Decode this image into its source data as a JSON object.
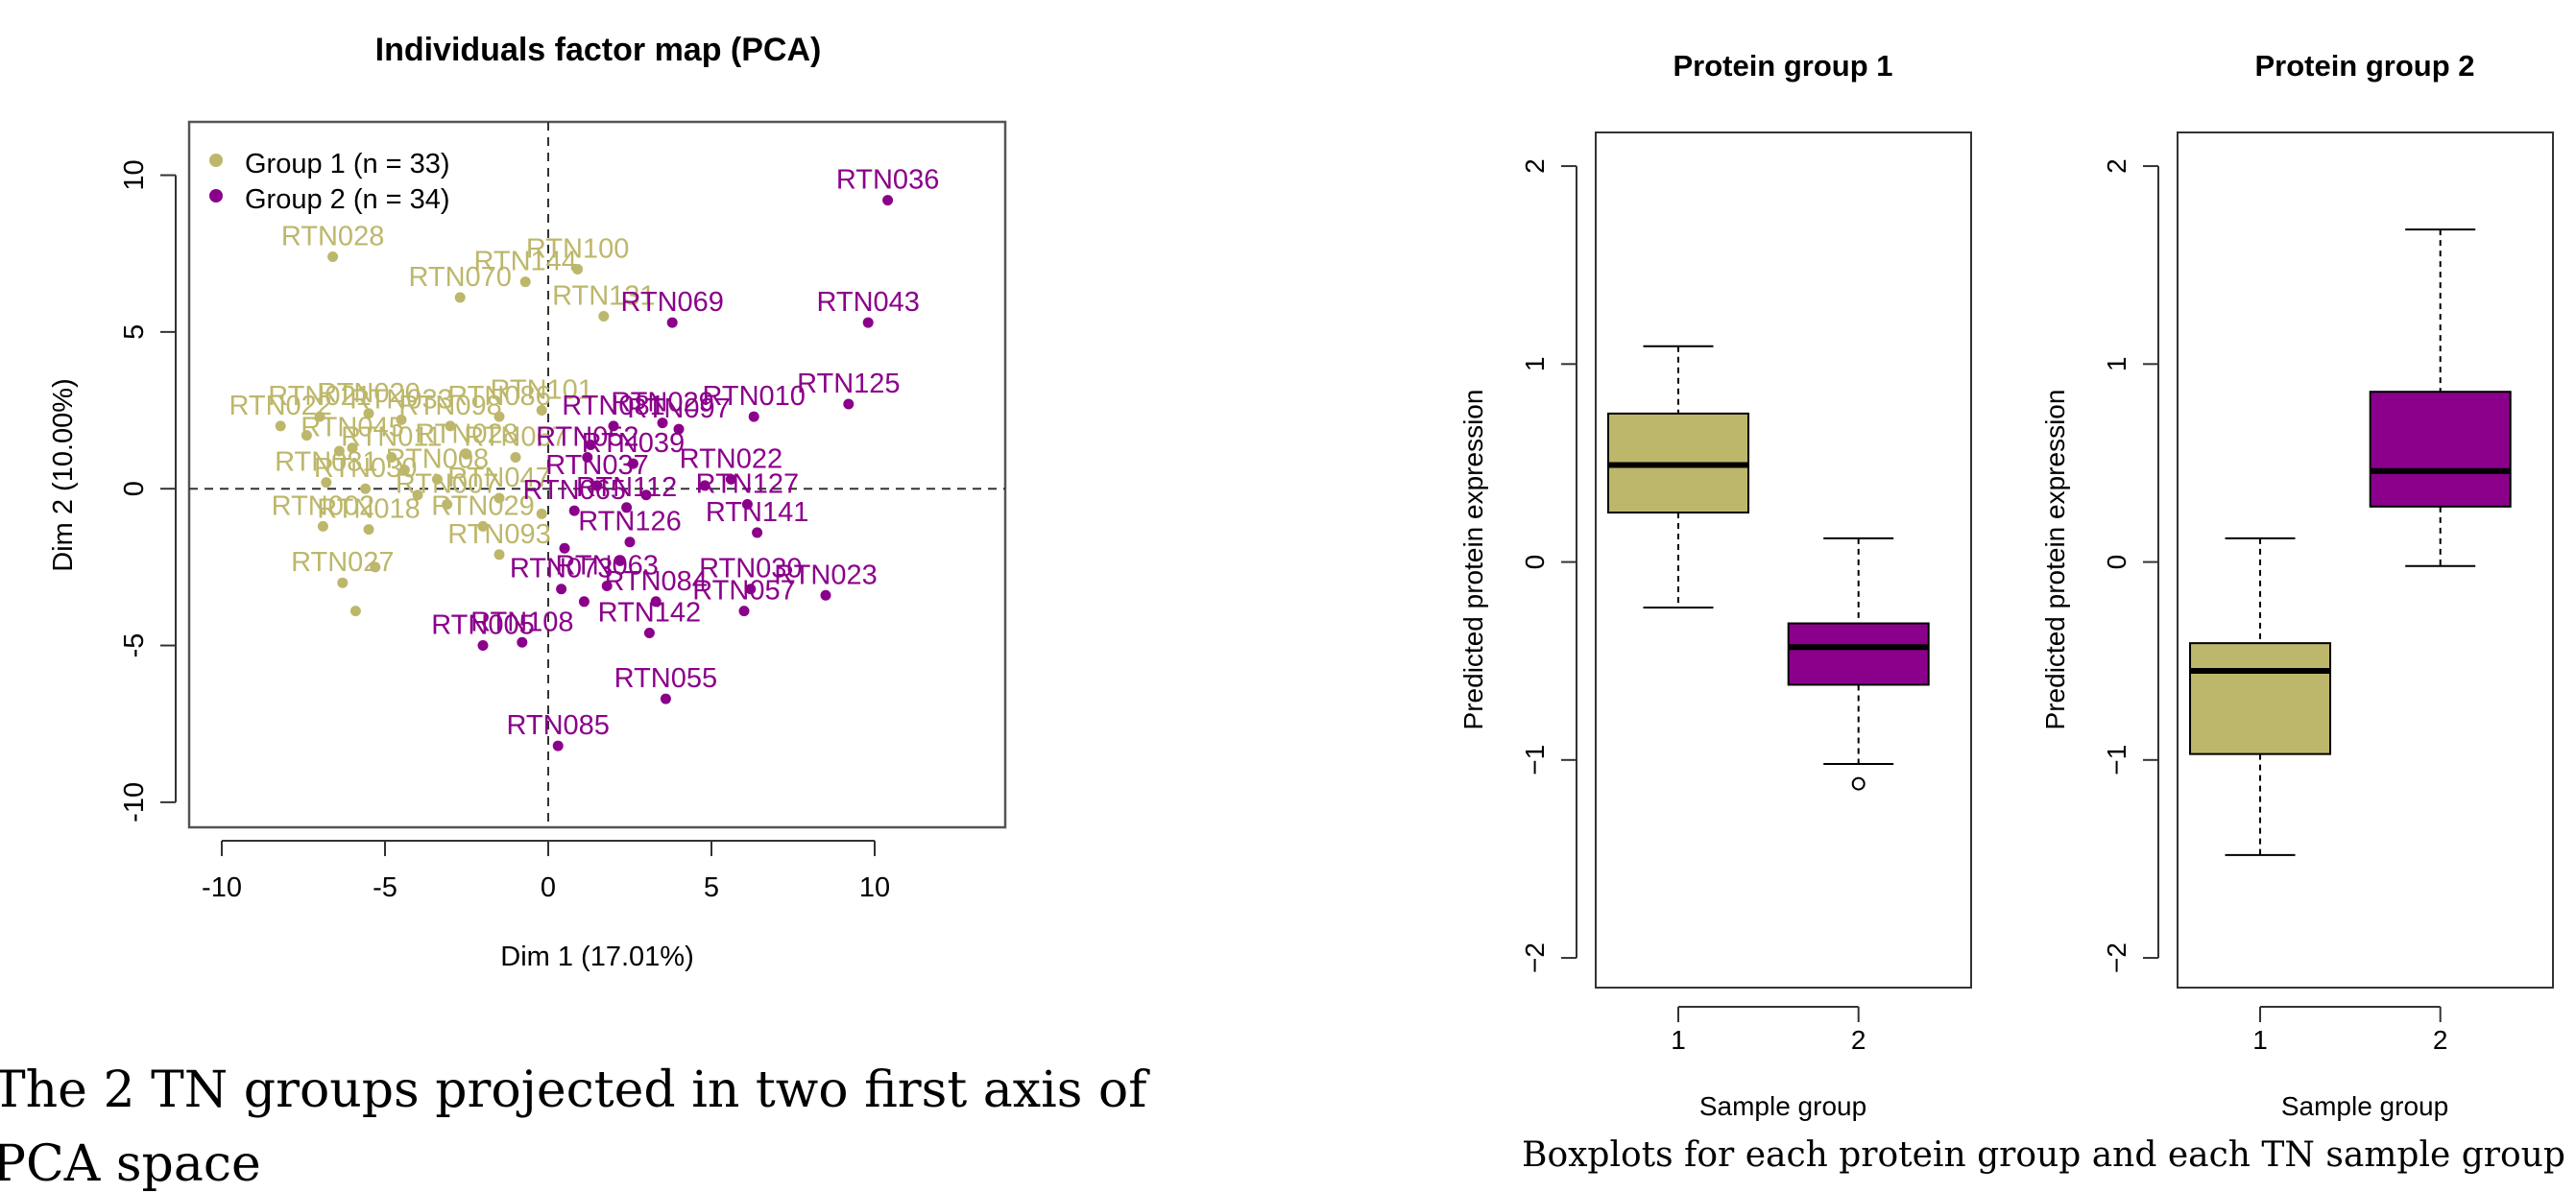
{
  "colors": {
    "group1": "#bdb76b",
    "group2": "#8b008b",
    "axis": "#333333"
  },
  "chart_data": [
    {
      "type": "scatter",
      "title": "Individuals factor map (PCA)",
      "xlabel": "Dim 1 (17.01%)",
      "ylabel": "Dim 2 (10.00%)",
      "xlim": [
        -11,
        14
      ],
      "ylim": [
        -10.8,
        11.7
      ],
      "xticks": [
        "-10",
        "-5",
        "0",
        "5",
        "10"
      ],
      "yticks": [
        "-10",
        "-5",
        "0",
        "5",
        "10"
      ],
      "legend": {
        "position": "top-left",
        "entries": [
          "Group 1 (n = 33)",
          "Group 2 (n = 34)"
        ]
      },
      "series": [
        {
          "name": "Group 1 (n = 33)",
          "points": [
            {
              "x": -6.6,
              "y": 7.4,
              "label": "RTN028"
            },
            {
              "x": -2.7,
              "y": 6.1,
              "label": "RTN070"
            },
            {
              "x": -0.7,
              "y": 6.6,
              "label": "RTN144"
            },
            {
              "x": 0.9,
              "y": 7.0,
              "label": "RTN100"
            },
            {
              "x": 1.7,
              "y": 5.5,
              "label": "RTN131"
            },
            {
              "x": -8.2,
              "y": 2.0,
              "label": "RTN022"
            },
            {
              "x": -7.0,
              "y": 2.3,
              "label": "RTN021"
            },
            {
              "x": -5.5,
              "y": 2.4,
              "label": "RTN020"
            },
            {
              "x": -4.5,
              "y": 2.2,
              "label": "RTN033"
            },
            {
              "x": -3.0,
              "y": 2.0,
              "label": "RTN098"
            },
            {
              "x": -1.5,
              "y": 2.3,
              "label": "RTN086"
            },
            {
              "x": -0.2,
              "y": 2.5,
              "label": "RTN101"
            },
            {
              "x": -6.0,
              "y": 1.3,
              "label": "RTN045"
            },
            {
              "x": -4.8,
              "y": 1.0,
              "label": "RTN011"
            },
            {
              "x": -2.5,
              "y": 1.1,
              "label": "RTN028"
            },
            {
              "x": -1.0,
              "y": 1.0,
              "label": "RTN067"
            },
            {
              "x": -6.8,
              "y": 0.2,
              "label": "RTN081"
            },
            {
              "x": -5.6,
              "y": 0.0,
              "label": "RTN030"
            },
            {
              "x": -3.4,
              "y": 0.3,
              "label": "RTN008"
            },
            {
              "x": -1.5,
              "y": -0.3,
              "label": "RTN047"
            },
            {
              "x": -6.9,
              "y": -1.2,
              "label": "RTN002"
            },
            {
              "x": -5.5,
              "y": -1.3,
              "label": "RTN018"
            },
            {
              "x": -3.1,
              "y": -0.5,
              "label": "RTN007"
            },
            {
              "x": -2.0,
              "y": -1.2,
              "label": "RTN029"
            },
            {
              "x": -6.3,
              "y": -3.0,
              "label": "RTN027"
            },
            {
              "x": -1.5,
              "y": -2.1,
              "label": "RTN093"
            },
            {
              "x": -5.9,
              "y": -3.9
            },
            {
              "x": -5.3,
              "y": -2.5
            },
            {
              "x": -7.4,
              "y": 1.7
            },
            {
              "x": -4.0,
              "y": -0.2
            },
            {
              "x": -6.4,
              "y": 1.2
            },
            {
              "x": -0.2,
              "y": -0.8
            },
            {
              "x": -4.4,
              "y": 0.6
            }
          ]
        },
        {
          "name": "Group 2 (n = 34)",
          "points": [
            {
              "x": 10.4,
              "y": 9.2,
              "label": "RTN036"
            },
            {
              "x": 9.8,
              "y": 5.3,
              "label": "RTN043"
            },
            {
              "x": 3.8,
              "y": 5.3,
              "label": "RTN069"
            },
            {
              "x": 9.2,
              "y": 2.7,
              "label": "RTN125"
            },
            {
              "x": 6.3,
              "y": 2.3,
              "label": "RTN010"
            },
            {
              "x": 2.0,
              "y": 2.0,
              "label": "RTN081"
            },
            {
              "x": 3.5,
              "y": 2.1,
              "label": "RTN029"
            },
            {
              "x": 4.0,
              "y": 1.9,
              "label": "RTN097"
            },
            {
              "x": 1.2,
              "y": 1.0,
              "label": "RTN052"
            },
            {
              "x": 2.6,
              "y": 0.8,
              "label": "RTN039"
            },
            {
              "x": 5.6,
              "y": 0.3,
              "label": "RTN022"
            },
            {
              "x": 6.1,
              "y": -0.5,
              "label": "RTN127"
            },
            {
              "x": 6.4,
              "y": -1.4,
              "label": "RTN141"
            },
            {
              "x": 1.5,
              "y": 0.1,
              "label": "RTN037"
            },
            {
              "x": 2.4,
              "y": -0.6,
              "label": "RTN112"
            },
            {
              "x": 0.8,
              "y": -0.7,
              "label": "RTN065"
            },
            {
              "x": 2.5,
              "y": -1.7,
              "label": "RTN126"
            },
            {
              "x": 0.4,
              "y": -3.2,
              "label": "RTN073"
            },
            {
              "x": 1.8,
              "y": -3.1,
              "label": "RTN063"
            },
            {
              "x": 6.2,
              "y": -3.2,
              "label": "RTN030"
            },
            {
              "x": 8.5,
              "y": -3.4,
              "label": "RTN023"
            },
            {
              "x": 6.0,
              "y": -3.9,
              "label": "RTN057"
            },
            {
              "x": 3.3,
              "y": -3.6,
              "label": "RTN084"
            },
            {
              "x": -2.0,
              "y": -5.0,
              "label": "RTN005"
            },
            {
              "x": -0.8,
              "y": -4.9,
              "label": "RTN108"
            },
            {
              "x": 3.1,
              "y": -4.6,
              "label": "RTN142"
            },
            {
              "x": 3.6,
              "y": -6.7,
              "label": "RTN055"
            },
            {
              "x": 0.3,
              "y": -8.2,
              "label": "RTN085"
            },
            {
              "x": 1.1,
              "y": -3.6
            },
            {
              "x": 2.2,
              "y": -2.3
            },
            {
              "x": 1.3,
              "y": 1.4
            },
            {
              "x": 4.8,
              "y": 0.1
            },
            {
              "x": 0.5,
              "y": -1.9
            },
            {
              "x": 3.0,
              "y": -0.2
            }
          ]
        }
      ],
      "caption": "The 2 TN groups projected in two first axis of PCA space"
    },
    {
      "type": "box",
      "title": "Protein group 1",
      "xlabel": "Sample group",
      "ylabel": "Predicted protein expression",
      "categories": [
        "1",
        "2"
      ],
      "ylim": [
        -2.15,
        2.17
      ],
      "yticks": [
        "-2",
        "-1",
        "0",
        "1",
        "2"
      ],
      "boxes": [
        {
          "category": "1",
          "whisker_low": -0.23,
          "q1": 0.25,
          "median": 0.49,
          "q3": 0.75,
          "whisker_high": 1.09,
          "outliers": []
        },
        {
          "category": "2",
          "whisker_low": -1.02,
          "q1": -0.62,
          "median": -0.43,
          "q3": -0.31,
          "whisker_high": 0.12,
          "outliers": [
            -1.12
          ]
        }
      ]
    },
    {
      "type": "box",
      "title": "Protein group 2",
      "xlabel": "Sample group",
      "ylabel": "Predicted protein expression",
      "categories": [
        "1",
        "2"
      ],
      "ylim": [
        -2.15,
        2.17
      ],
      "yticks": [
        "-2",
        "-1",
        "0",
        "1",
        "2"
      ],
      "boxes": [
        {
          "category": "1",
          "whisker_low": -1.48,
          "q1": -0.97,
          "median": -0.55,
          "q3": -0.41,
          "whisker_high": 0.12,
          "outliers": []
        },
        {
          "category": "2",
          "whisker_low": -0.02,
          "q1": 0.28,
          "median": 0.46,
          "q3": 0.86,
          "whisker_high": 1.68,
          "outliers": []
        }
      ]
    }
  ],
  "captions": {
    "left_line1": "The 2 TN groups projected in two first axis of",
    "left_line2": "PCA space",
    "right": "Boxplots for each protein group and each TN sample group"
  }
}
